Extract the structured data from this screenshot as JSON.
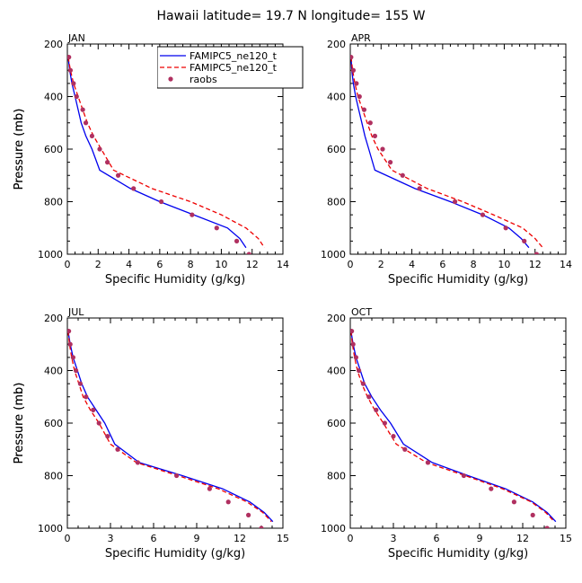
{
  "figure": {
    "title": "Hawaii  latitude= 19.7 N longitude= 155 W"
  },
  "colors": {
    "model1": "#0000ee",
    "model2": "#ee0000",
    "obs": "#b03060"
  },
  "chart_data": [
    {
      "type": "line",
      "panel_label": "JAN",
      "xlabel": "Specific Humidity (g/kg)",
      "ylabel": "Pressure (mb)",
      "xlim": [
        0,
        14
      ],
      "ylim": [
        1000,
        200
      ],
      "y_inverted": true,
      "xticks": [
        0,
        2,
        4,
        6,
        8,
        10,
        12,
        14
      ],
      "yticks": [
        200,
        400,
        600,
        800,
        1000
      ],
      "legend": {
        "placement": "top-right",
        "entries": [
          "FAMIPC5_ne120_t",
          "FAMIPC5_ne120_t",
          "raobs"
        ]
      },
      "series": [
        {
          "name": "FAMIPC5_ne120_t",
          "style": "solid",
          "points": [
            [
              0.05,
              250
            ],
            [
              0.15,
              300
            ],
            [
              0.3,
              350
            ],
            [
              0.5,
              400
            ],
            [
              0.7,
              450
            ],
            [
              0.9,
              500
            ],
            [
              1.2,
              550
            ],
            [
              1.6,
              600
            ],
            [
              2.1,
              680
            ],
            [
              4.1,
              750
            ],
            [
              6.0,
              800
            ],
            [
              8.2,
              850
            ],
            [
              10.4,
              900
            ],
            [
              11.2,
              940
            ],
            [
              11.6,
              975
            ]
          ]
        },
        {
          "name": "FAMIPC5_ne120_t",
          "style": "dashed",
          "points": [
            [
              0.05,
              250
            ],
            [
              0.2,
              300
            ],
            [
              0.4,
              350
            ],
            [
              0.7,
              400
            ],
            [
              1.0,
              450
            ],
            [
              1.3,
              500
            ],
            [
              1.7,
              550
            ],
            [
              2.2,
              600
            ],
            [
              3.0,
              680
            ],
            [
              5.5,
              750
            ],
            [
              8.0,
              800
            ],
            [
              10.0,
              850
            ],
            [
              11.6,
              900
            ],
            [
              12.4,
              940
            ],
            [
              12.8,
              975
            ]
          ]
        },
        {
          "name": "raobs",
          "style": "markers",
          "points": [
            [
              0.1,
              250
            ],
            [
              0.2,
              300
            ],
            [
              0.4,
              350
            ],
            [
              0.6,
              400
            ],
            [
              1.0,
              450
            ],
            [
              1.2,
              500
            ],
            [
              1.6,
              550
            ],
            [
              2.1,
              600
            ],
            [
              2.6,
              650
            ],
            [
              3.3,
              700
            ],
            [
              4.3,
              750
            ],
            [
              6.1,
              800
            ],
            [
              8.1,
              850
            ],
            [
              9.7,
              900
            ],
            [
              11.0,
              950
            ],
            [
              11.8,
              1000
            ]
          ]
        }
      ]
    },
    {
      "type": "line",
      "panel_label": "APR",
      "xlabel": "Specific Humidity (g/kg)",
      "ylabel": "Pressure (mb)",
      "xlim": [
        0,
        14
      ],
      "ylim": [
        1000,
        200
      ],
      "y_inverted": true,
      "xticks": [
        0,
        2,
        4,
        6,
        8,
        10,
        12,
        14
      ],
      "yticks": [
        200,
        400,
        600,
        800,
        1000
      ],
      "series": [
        {
          "name": "FAMIPC5_ne120_t",
          "style": "solid",
          "points": [
            [
              0.05,
              250
            ],
            [
              0.1,
              300
            ],
            [
              0.2,
              350
            ],
            [
              0.35,
              400
            ],
            [
              0.55,
              450
            ],
            [
              0.75,
              500
            ],
            [
              0.95,
              550
            ],
            [
              1.2,
              600
            ],
            [
              1.6,
              680
            ],
            [
              4.2,
              750
            ],
            [
              6.5,
              800
            ],
            [
              8.6,
              850
            ],
            [
              10.3,
              900
            ],
            [
              11.1,
              940
            ],
            [
              11.6,
              975
            ]
          ]
        },
        {
          "name": "FAMIPC5_ne120_t",
          "style": "dashed",
          "points": [
            [
              0.05,
              250
            ],
            [
              0.15,
              300
            ],
            [
              0.3,
              350
            ],
            [
              0.5,
              400
            ],
            [
              0.8,
              450
            ],
            [
              1.1,
              500
            ],
            [
              1.4,
              550
            ],
            [
              1.8,
              600
            ],
            [
              2.7,
              680
            ],
            [
              5.0,
              750
            ],
            [
              7.3,
              800
            ],
            [
              9.3,
              850
            ],
            [
              11.2,
              900
            ],
            [
              12.0,
              940
            ],
            [
              12.5,
              975
            ]
          ]
        },
        {
          "name": "raobs",
          "style": "markers",
          "points": [
            [
              0.05,
              250
            ],
            [
              0.2,
              300
            ],
            [
              0.4,
              350
            ],
            [
              0.6,
              400
            ],
            [
              0.9,
              450
            ],
            [
              1.3,
              500
            ],
            [
              1.6,
              550
            ],
            [
              2.1,
              600
            ],
            [
              2.6,
              650
            ],
            [
              3.4,
              700
            ],
            [
              4.5,
              750
            ],
            [
              6.8,
              800
            ],
            [
              8.6,
              850
            ],
            [
              10.1,
              900
            ],
            [
              11.3,
              950
            ],
            [
              12.1,
              1000
            ]
          ]
        }
      ]
    },
    {
      "type": "line",
      "panel_label": "JUL",
      "xlabel": "Specific Humidity (g/kg)",
      "ylabel": "Pressure (mb)",
      "xlim": [
        0,
        15
      ],
      "ylim": [
        1000,
        200
      ],
      "y_inverted": true,
      "xticks": [
        0,
        3,
        6,
        9,
        12,
        15
      ],
      "yticks": [
        200,
        400,
        600,
        800,
        1000
      ],
      "series": [
        {
          "name": "FAMIPC5_ne120_t",
          "style": "solid",
          "points": [
            [
              0.05,
              250
            ],
            [
              0.2,
              300
            ],
            [
              0.4,
              350
            ],
            [
              0.7,
              400
            ],
            [
              1.0,
              450
            ],
            [
              1.4,
              500
            ],
            [
              2.0,
              550
            ],
            [
              2.6,
              600
            ],
            [
              3.3,
              680
            ],
            [
              5.0,
              750
            ],
            [
              8.0,
              800
            ],
            [
              10.8,
              850
            ],
            [
              12.7,
              900
            ],
            [
              13.7,
              940
            ],
            [
              14.3,
              975
            ]
          ]
        },
        {
          "name": "FAMIPC5_ne120_t",
          "style": "dashed",
          "points": [
            [
              0.05,
              250
            ],
            [
              0.15,
              300
            ],
            [
              0.3,
              350
            ],
            [
              0.5,
              400
            ],
            [
              0.8,
              450
            ],
            [
              1.1,
              500
            ],
            [
              1.6,
              550
            ],
            [
              2.2,
              600
            ],
            [
              3.0,
              680
            ],
            [
              4.8,
              750
            ],
            [
              7.7,
              800
            ],
            [
              10.5,
              850
            ],
            [
              12.5,
              900
            ],
            [
              13.6,
              940
            ],
            [
              14.2,
              975
            ]
          ]
        },
        {
          "name": "raobs",
          "style": "markers",
          "points": [
            [
              0.1,
              250
            ],
            [
              0.2,
              300
            ],
            [
              0.4,
              350
            ],
            [
              0.6,
              400
            ],
            [
              0.9,
              450
            ],
            [
              1.3,
              500
            ],
            [
              1.8,
              550
            ],
            [
              2.2,
              600
            ],
            [
              2.8,
              650
            ],
            [
              3.5,
              700
            ],
            [
              4.9,
              750
            ],
            [
              7.6,
              800
            ],
            [
              9.9,
              850
            ],
            [
              11.2,
              900
            ],
            [
              12.6,
              950
            ],
            [
              13.5,
              1000
            ]
          ]
        }
      ]
    },
    {
      "type": "line",
      "panel_label": "OCT",
      "xlabel": "Specific Humidity (g/kg)",
      "ylabel": "Pressure (mb)",
      "xlim": [
        0,
        15
      ],
      "ylim": [
        1000,
        200
      ],
      "y_inverted": true,
      "xticks": [
        0,
        3,
        6,
        9,
        12,
        15
      ],
      "yticks": [
        200,
        400,
        600,
        800,
        1000
      ],
      "series": [
        {
          "name": "FAMIPC5_ne120_t",
          "style": "solid",
          "points": [
            [
              0.05,
              250
            ],
            [
              0.2,
              300
            ],
            [
              0.4,
              350
            ],
            [
              0.7,
              400
            ],
            [
              1.0,
              450
            ],
            [
              1.5,
              500
            ],
            [
              2.1,
              550
            ],
            [
              2.8,
              600
            ],
            [
              3.7,
              680
            ],
            [
              5.7,
              750
            ],
            [
              8.2,
              800
            ],
            [
              10.8,
              850
            ],
            [
              12.7,
              900
            ],
            [
              13.7,
              940
            ],
            [
              14.3,
              975
            ]
          ]
        },
        {
          "name": "FAMIPC5_ne120_t",
          "style": "dashed",
          "points": [
            [
              0.05,
              250
            ],
            [
              0.15,
              300
            ],
            [
              0.3,
              350
            ],
            [
              0.5,
              400
            ],
            [
              0.8,
              450
            ],
            [
              1.2,
              500
            ],
            [
              1.7,
              550
            ],
            [
              2.3,
              600
            ],
            [
              3.2,
              680
            ],
            [
              5.3,
              750
            ],
            [
              8.0,
              800
            ],
            [
              10.6,
              850
            ],
            [
              12.6,
              900
            ],
            [
              13.6,
              940
            ],
            [
              14.2,
              975
            ]
          ]
        },
        {
          "name": "raobs",
          "style": "markers",
          "points": [
            [
              0.1,
              250
            ],
            [
              0.2,
              300
            ],
            [
              0.4,
              350
            ],
            [
              0.6,
              400
            ],
            [
              0.9,
              450
            ],
            [
              1.3,
              500
            ],
            [
              1.8,
              550
            ],
            [
              2.4,
              600
            ],
            [
              3.0,
              650
            ],
            [
              3.8,
              700
            ],
            [
              5.4,
              750
            ],
            [
              7.9,
              800
            ],
            [
              9.8,
              850
            ],
            [
              11.4,
              900
            ],
            [
              12.7,
              950
            ],
            [
              13.7,
              1000
            ]
          ]
        }
      ]
    }
  ]
}
